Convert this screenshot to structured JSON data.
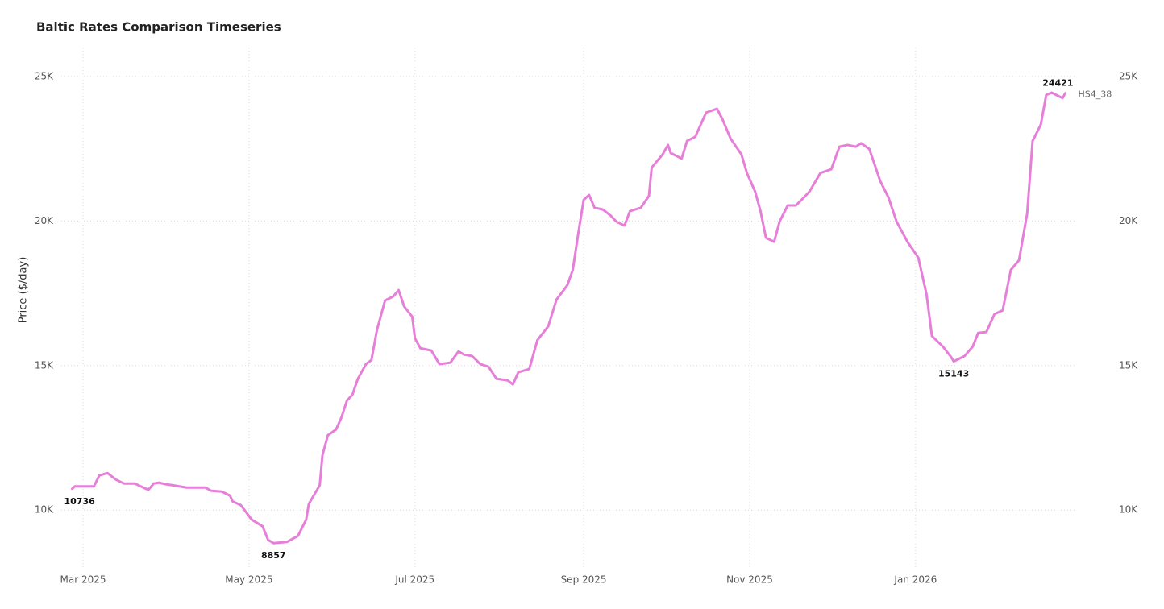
{
  "chart_data": {
    "type": "line",
    "title": "Baltic Rates Comparison Timeseries",
    "y_label": "Price ($/day)",
    "x": [
      "2025-02-25",
      "2025-02-26",
      "2025-03-05",
      "2025-03-07",
      "2025-03-10",
      "2025-03-13",
      "2025-03-16",
      "2025-03-20",
      "2025-03-25",
      "2025-03-27",
      "2025-03-29",
      "2025-03-31",
      "2025-04-03",
      "2025-04-08",
      "2025-04-15",
      "2025-04-17",
      "2025-04-21",
      "2025-04-24",
      "2025-04-25",
      "2025-04-28",
      "2025-05-02",
      "2025-05-06",
      "2025-05-08",
      "2025-05-10",
      "2025-05-15",
      "2025-05-19",
      "2025-05-22",
      "2025-05-23",
      "2025-05-27",
      "2025-05-28",
      "2025-05-30",
      "2025-06-02",
      "2025-06-04",
      "2025-06-06",
      "2025-06-08",
      "2025-06-10",
      "2025-06-13",
      "2025-06-15",
      "2025-06-17",
      "2025-06-20",
      "2025-06-23",
      "2025-06-25",
      "2025-06-27",
      "2025-06-30",
      "2025-07-01",
      "2025-07-03",
      "2025-07-07",
      "2025-07-10",
      "2025-07-14",
      "2025-07-17",
      "2025-07-19",
      "2025-07-22",
      "2025-07-25",
      "2025-07-28",
      "2025-07-31",
      "2025-08-04",
      "2025-08-06",
      "2025-08-08",
      "2025-08-12",
      "2025-08-15",
      "2025-08-19",
      "2025-08-22",
      "2025-08-26",
      "2025-08-28",
      "2025-08-30",
      "2025-09-01",
      "2025-09-03",
      "2025-09-05",
      "2025-09-08",
      "2025-09-11",
      "2025-09-13",
      "2025-09-16",
      "2025-09-18",
      "2025-09-22",
      "2025-09-25",
      "2025-09-26",
      "2025-09-30",
      "2025-10-02",
      "2025-10-03",
      "2025-10-07",
      "2025-10-09",
      "2025-10-12",
      "2025-10-16",
      "2025-10-20",
      "2025-10-22",
      "2025-10-25",
      "2025-10-29",
      "2025-10-31",
      "2025-11-03",
      "2025-11-05",
      "2025-11-07",
      "2025-11-10",
      "2025-11-12",
      "2025-11-15",
      "2025-11-18",
      "2025-11-21",
      "2025-11-23",
      "2025-11-27",
      "2025-12-01",
      "2025-12-04",
      "2025-12-07",
      "2025-12-10",
      "2025-12-12",
      "2025-12-15",
      "2025-12-19",
      "2025-12-22",
      "2025-12-25",
      "2025-12-29",
      "2026-01-02",
      "2026-01-05",
      "2026-01-07",
      "2026-01-11",
      "2026-01-14",
      "2026-01-15",
      "2026-01-19",
      "2026-01-22",
      "2026-01-24",
      "2026-01-27",
      "2026-01-30",
      "2026-02-02",
      "2026-02-05",
      "2026-02-08",
      "2026-02-11",
      "2026-02-13",
      "2026-02-16",
      "2026-02-18",
      "2026-02-20",
      "2026-02-24",
      "2026-02-25"
    ],
    "series": [
      {
        "name": "HS4_38",
        "color": "#e57fd8",
        "values": [
          10736,
          10820,
          10820,
          11200,
          11280,
          11060,
          10920,
          10920,
          10700,
          10920,
          10950,
          10900,
          10860,
          10780,
          10780,
          10670,
          10640,
          10500,
          10300,
          10170,
          9670,
          9440,
          8970,
          8857,
          8900,
          9110,
          9670,
          10220,
          10860,
          11900,
          12590,
          12790,
          13210,
          13790,
          13990,
          14540,
          15050,
          15190,
          16220,
          17250,
          17390,
          17610,
          17050,
          16690,
          15940,
          15600,
          15520,
          15050,
          15100,
          15490,
          15380,
          15330,
          15050,
          14960,
          14540,
          14490,
          14350,
          14770,
          14880,
          15880,
          16360,
          17280,
          17780,
          18310,
          19560,
          20730,
          20900,
          20460,
          20400,
          20180,
          19980,
          19840,
          20340,
          20460,
          20870,
          21850,
          22300,
          22630,
          22350,
          22160,
          22770,
          22910,
          23750,
          23880,
          23520,
          22850,
          22300,
          21660,
          21020,
          20340,
          19420,
          19280,
          19980,
          20540,
          20540,
          20820,
          21020,
          21660,
          21790,
          22570,
          22630,
          22570,
          22690,
          22490,
          21380,
          20820,
          19980,
          19280,
          18730,
          17470,
          16020,
          15660,
          15300,
          15143,
          15330,
          15660,
          16130,
          16160,
          16780,
          16910,
          18310,
          18640,
          20260,
          22770,
          23330,
          24360,
          24440,
          24250,
          24421
        ],
        "labeled_indices": [
          0,
          23,
          113,
          128
        ]
      }
    ],
    "xlim": [
      "2025-02-21",
      "2026-03-01"
    ],
    "xticks": [
      {
        "value": "2025-03-01",
        "label": "Mar 2025"
      },
      {
        "value": "2025-05-01",
        "label": "May 2025"
      },
      {
        "value": "2025-07-01",
        "label": "Jul 2025"
      },
      {
        "value": "2025-09-01",
        "label": "Sep 2025"
      },
      {
        "value": "2025-11-01",
        "label": "Nov 2025"
      },
      {
        "value": "2026-01-01",
        "label": "Jan 2026"
      }
    ],
    "ylim": [
      8000,
      26000
    ],
    "yticks": [
      {
        "value": 10000,
        "label": "10K"
      },
      {
        "value": 15000,
        "label": "15K"
      },
      {
        "value": 20000,
        "label": "20K"
      },
      {
        "value": 25000,
        "label": "25K"
      }
    ],
    "y2lim": [
      8000,
      26000
    ],
    "y2ticks": [
      {
        "value": 10000,
        "label": "10K"
      },
      {
        "value": 15000,
        "label": "15K"
      },
      {
        "value": 20000,
        "label": "20K"
      },
      {
        "value": 25000,
        "label": "25K"
      }
    ],
    "grid": true
  }
}
